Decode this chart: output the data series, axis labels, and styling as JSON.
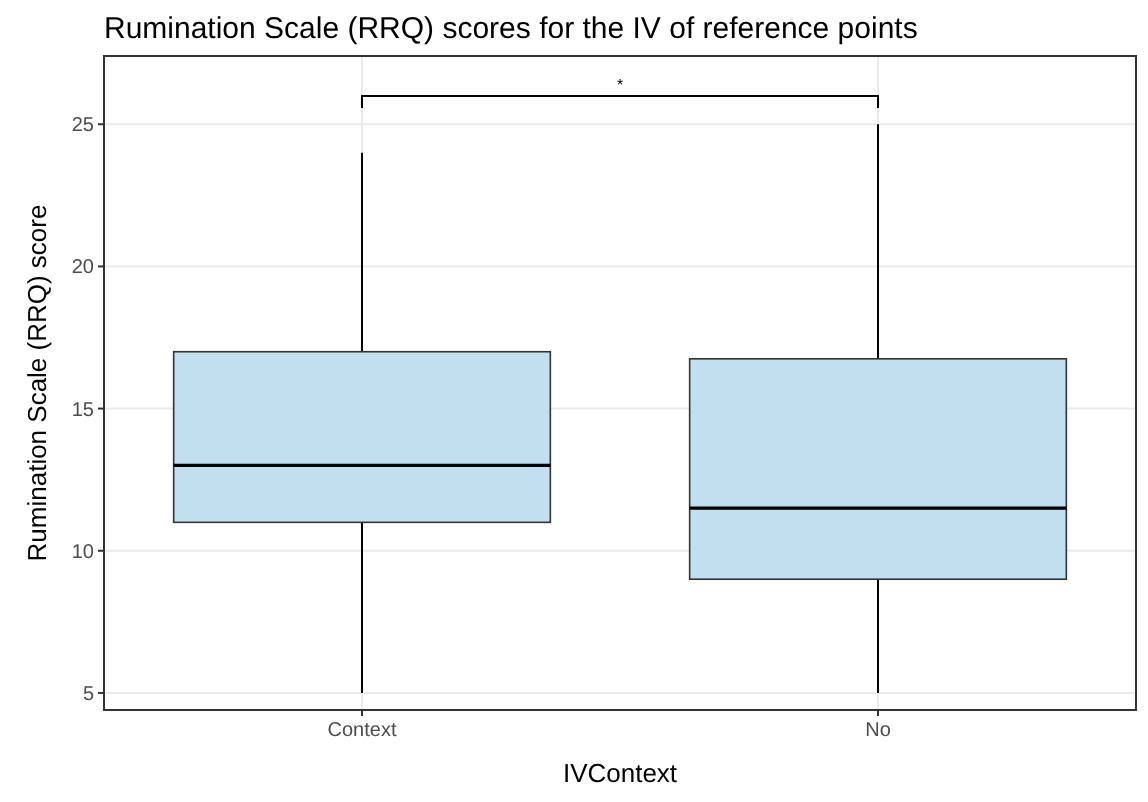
{
  "chart_data": {
    "type": "box",
    "title": "Rumination Scale (RRQ) scores for the IV of reference points",
    "xlabel": "IVContext",
    "ylabel": "Rumination Scale (RRQ) score",
    "categories": [
      "Context",
      "No"
    ],
    "boxes": [
      {
        "low": 5,
        "q1": 11,
        "median": 13,
        "q3": 17,
        "high": 24
      },
      {
        "low": 5,
        "q1": 9,
        "median": 11.5,
        "q3": 16.75,
        "high": 25
      }
    ],
    "color": "#c2dff0",
    "ylim": [
      4.4,
      27.4
    ],
    "yticks": [
      5,
      10,
      15,
      20,
      25
    ],
    "grid": true,
    "annotations": [
      "*"
    ]
  }
}
